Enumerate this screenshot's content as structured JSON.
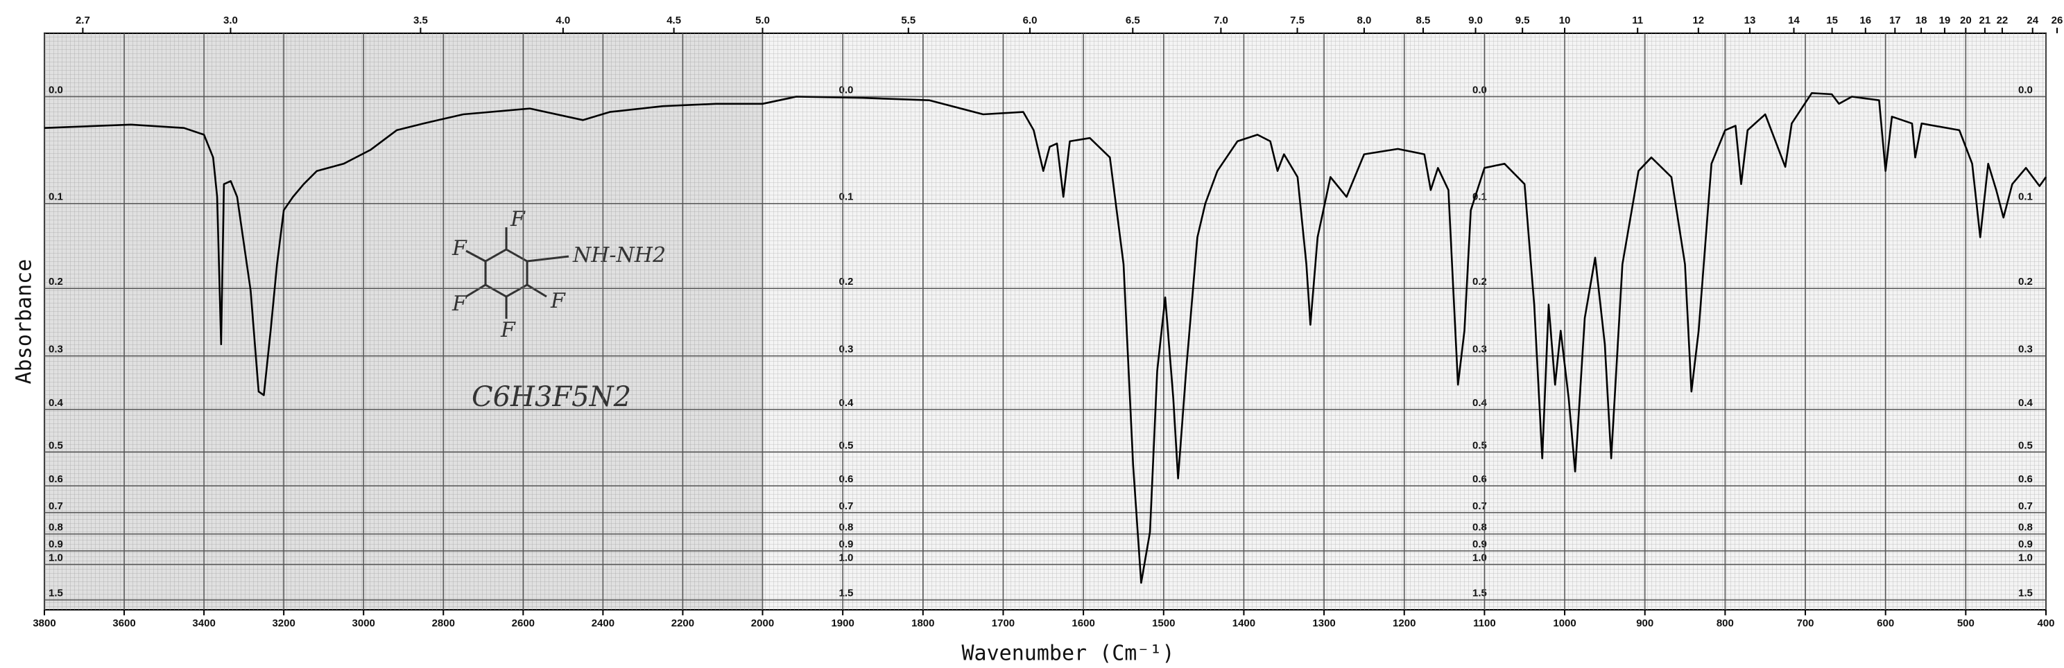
{
  "chart_data": {
    "type": "line",
    "color": "#000000",
    "grid": true,
    "yscale": "transmittance",
    "xlabel": "Wavenumber (Cm⁻¹)",
    "ylabel": "Absorbance",
    "xlim": [
      3800,
      400
    ],
    "xbreak": 2000,
    "xticks": [
      3800,
      3600,
      3400,
      3200,
      3000,
      2800,
      2600,
      2400,
      2200,
      2000,
      1900,
      1800,
      1700,
      1600,
      1500,
      1400,
      1300,
      1200,
      1100,
      1000,
      900,
      800,
      700,
      600,
      500,
      400
    ],
    "x2ticks": [
      2.7,
      {
        "value": 3,
        "label": "3.0"
      },
      3.5,
      {
        "value": 4,
        "label": "4.0"
      },
      4.5,
      {
        "value": 5,
        "label": "5.0"
      },
      5.5,
      {
        "value": 6,
        "label": "6.0"
      },
      6.5,
      {
        "value": 7,
        "label": "7.0"
      },
      7.5,
      {
        "value": 8,
        "label": "8.0"
      },
      8.5,
      {
        "value": 9,
        "label": "9.0"
      },
      9.5,
      10,
      11,
      12,
      13,
      14,
      15,
      16,
      17,
      18,
      19,
      20,
      21,
      22,
      24,
      26
    ],
    "ylim": [
      -0.05,
      1.9
    ],
    "yticks": [
      {
        "value": 0,
        "label": "0.0"
      },
      0.1,
      0.2,
      0.3,
      0.4,
      0.5,
      0.6,
      0.7,
      0.8,
      0.9,
      {
        "value": 1,
        "label": "1.0"
      },
      1.5
    ],
    "annotations": {
      "substituents": [
        "F",
        "F",
        "F",
        "F",
        "F"
      ],
      "group": "NH-NH2",
      "formula": "C6H3F5N2"
    },
    "x": [
      3800,
      3583,
      3450,
      3400,
      3377,
      3367,
      3357,
      3350,
      3333,
      3317,
      3283,
      3263,
      3250,
      3233,
      3217,
      3200,
      3177,
      3150,
      3117,
      3050,
      2983,
      2917,
      2850,
      2750,
      2583,
      2450,
      2383,
      2250,
      2117,
      2000,
      1958,
      1875,
      1792,
      1725,
      1675,
      1662,
      1650,
      1642,
      1633,
      1625,
      1617,
      1592,
      1567,
      1550,
      1538,
      1528,
      1517,
      1508,
      1498,
      1488,
      1482,
      1472,
      1458,
      1448,
      1433,
      1408,
      1383,
      1367,
      1358,
      1350,
      1333,
      1322,
      1317,
      1308,
      1292,
      1272,
      1250,
      1208,
      1175,
      1167,
      1158,
      1145,
      1133,
      1125,
      1117,
      1100,
      1075,
      1050,
      1038,
      1028,
      1020,
      1012,
      1005,
      995,
      987,
      975,
      962,
      950,
      942,
      928,
      908,
      892,
      867,
      850,
      842,
      833,
      817,
      800,
      787,
      780,
      772,
      750,
      725,
      717,
      692,
      667,
      658,
      642,
      608,
      600,
      592,
      567,
      563,
      555,
      508,
      492,
      482,
      472,
      462,
      453,
      442,
      425,
      408,
      400
    ],
    "values": [
      0.027,
      0.024,
      0.027,
      0.033,
      0.054,
      0.093,
      0.281,
      0.08,
      0.077,
      0.093,
      0.203,
      0.364,
      0.371,
      0.26,
      0.169,
      0.107,
      0.093,
      0.08,
      0.067,
      0.06,
      0.047,
      0.029,
      0.023,
      0.015,
      0.01,
      0.02,
      0.013,
      0.008,
      0.006,
      0.006,
      0,
      0.001,
      0.003,
      0.015,
      0.013,
      0.029,
      0.067,
      0.044,
      0.041,
      0.093,
      0.039,
      0.036,
      0.054,
      0.169,
      0.536,
      1.191,
      0.79,
      0.326,
      0.212,
      0.377,
      0.576,
      0.326,
      0.137,
      0.1,
      0.067,
      0.039,
      0.033,
      0.039,
      0.067,
      0.051,
      0.073,
      0.169,
      0.251,
      0.137,
      0.073,
      0.093,
      0.051,
      0.046,
      0.051,
      0.086,
      0.064,
      0.086,
      0.351,
      0.26,
      0.107,
      0.064,
      0.06,
      0.08,
      0.222,
      0.517,
      0.222,
      0.351,
      0.26,
      0.377,
      0.555,
      0.241,
      0.161,
      0.281,
      0.517,
      0.169,
      0.067,
      0.054,
      0.073,
      0.169,
      0.364,
      0.26,
      0.06,
      0.029,
      0.025,
      0.08,
      0.029,
      0.015,
      0.063,
      0.023,
      -0.003,
      -0.002,
      0.006,
      0,
      0.003,
      0.067,
      0.017,
      0.023,
      0.054,
      0.023,
      0.029,
      0.06,
      0.137,
      0.06,
      0.086,
      0.115,
      0.08,
      0.064,
      0.082,
      0.073
    ]
  }
}
